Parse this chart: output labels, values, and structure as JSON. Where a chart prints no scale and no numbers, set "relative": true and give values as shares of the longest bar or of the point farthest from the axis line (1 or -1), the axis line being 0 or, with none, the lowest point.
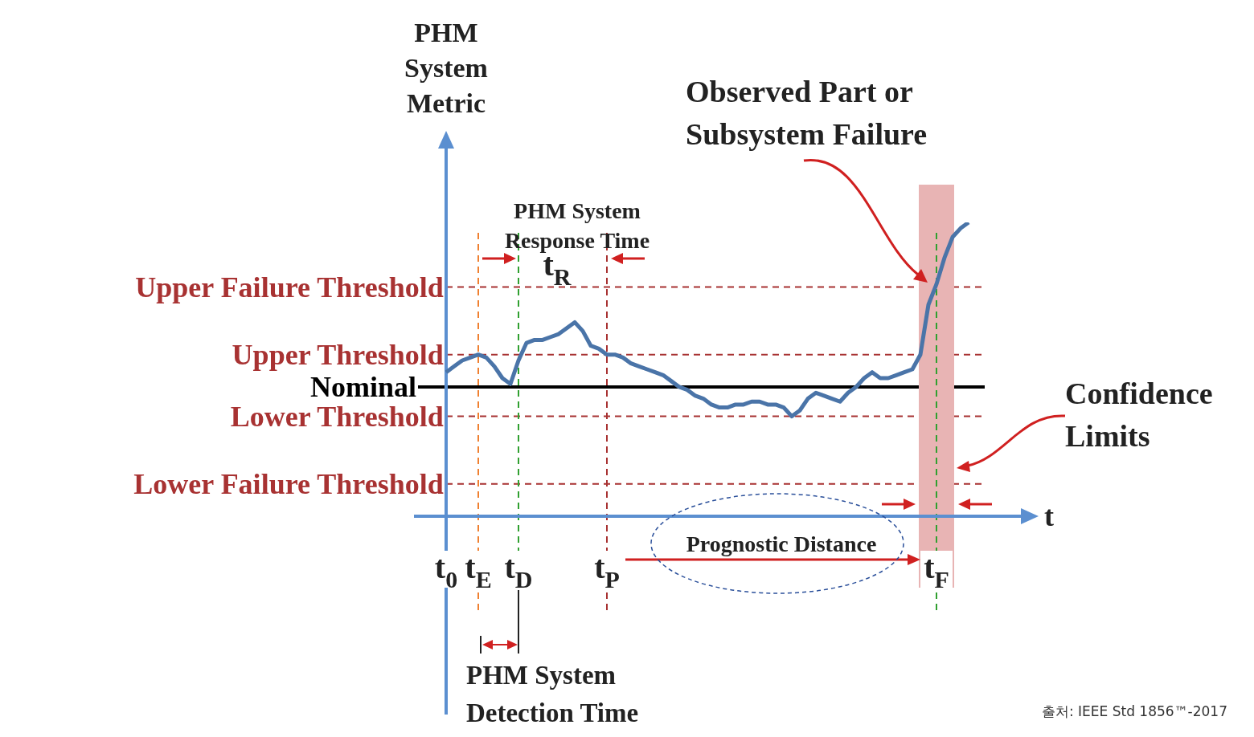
{
  "chart_data": {
    "type": "line",
    "relative": true,
    "ylabel": "PHM System Metric",
    "xlabel": "t",
    "categories": [
      "t$_{0}$",
      null,
      null,
      null,
      "t$_{E}$",
      null,
      null,
      null,
      null,
      "t$_{D}$",
      null,
      null,
      null,
      null,
      null,
      null,
      null,
      null,
      null,
      null,
      "t$_{P}$",
      null,
      null,
      null,
      null,
      null,
      null,
      null,
      null,
      null,
      null,
      null,
      null,
      null,
      null,
      null,
      null,
      null,
      null,
      null,
      null,
      null,
      null,
      null,
      null,
      null,
      null,
      null,
      null,
      null,
      null,
      null,
      null,
      null,
      null,
      null,
      null,
      null,
      null,
      null,
      null,
      "t$_{F}$",
      null,
      null,
      null,
      null
    ],
    "series": [
      {
        "color": "#4a74a8",
        "values": [
          0.49,
          0.51,
          0.53,
          0.54,
          0.55,
          0.54,
          0.51,
          0.47,
          0.45,
          0.53,
          0.59,
          0.6,
          0.6,
          0.61,
          0.62,
          0.64,
          0.66,
          0.63,
          0.58,
          0.57,
          0.55,
          0.55,
          0.54,
          0.52,
          0.51,
          0.5,
          0.49,
          0.48,
          0.46,
          0.44,
          0.43,
          0.41,
          0.4,
          0.38,
          0.37,
          0.37,
          0.38,
          0.38,
          0.39,
          0.39,
          0.38,
          0.38,
          0.37,
          0.34,
          0.36,
          0.4,
          0.42,
          0.41,
          0.4,
          0.39,
          0.42,
          0.44,
          0.47,
          0.49,
          0.47,
          0.47,
          0.48,
          0.49,
          0.5,
          0.55,
          0.72,
          0.79,
          0.88,
          0.95,
          0.98,
          1
        ]
      }
    ],
    "ref_lines": [
      {
        "axis": "y",
        "value": 0.78,
        "label": "Upper Failure Threshold",
        "color": "#a83232",
        "line_style": "dashed"
      },
      {
        "axis": "y",
        "value": 0.55,
        "label": "Upper Threshold",
        "color": "#a83232",
        "line_style": "dashed"
      },
      {
        "axis": "y",
        "value": 0.44,
        "label": "Nominal",
        "color": "#000000",
        "line_style": "solid"
      },
      {
        "axis": "y",
        "value": 0.34,
        "label": "Lower Threshold",
        "color": "#a83232",
        "line_style": "dashed"
      },
      {
        "axis": "y",
        "value": 0.11,
        "label": "Lower Failure Threshold",
        "color": "#a83232",
        "line_style": "dashed"
      },
      {
        "axis": "x",
        "value": "t$_{F}$",
        "color": "#e8b4b4",
        "line_style": "solid"
      },
      {
        "axis": "x",
        "value": "t$_{E}$",
        "color": "#f08030",
        "line_style": "dashed"
      },
      {
        "axis": "x",
        "value": "t$_{D}$",
        "color": "#30a030",
        "line_style": "dashed"
      },
      {
        "axis": "x",
        "value": "t$_{P}$",
        "color": "#a83232",
        "line_style": "dashed"
      },
      {
        "axis": "x",
        "value": "t$_{F}$",
        "color": "#30a030",
        "line_style": "dashed"
      }
    ],
    "annotations": [
      "PHM System Response Time",
      "t$_{R}$",
      "Observed Part or Subsystem Failure",
      "Confidence Limits",
      "Prognostic Distance",
      "PHM System Detection Time",
      "출처: IEEE Std 1856™-2017"
    ],
    "legend": false,
    "grid": false,
    "marker": "none",
    "line_style": "solid"
  }
}
